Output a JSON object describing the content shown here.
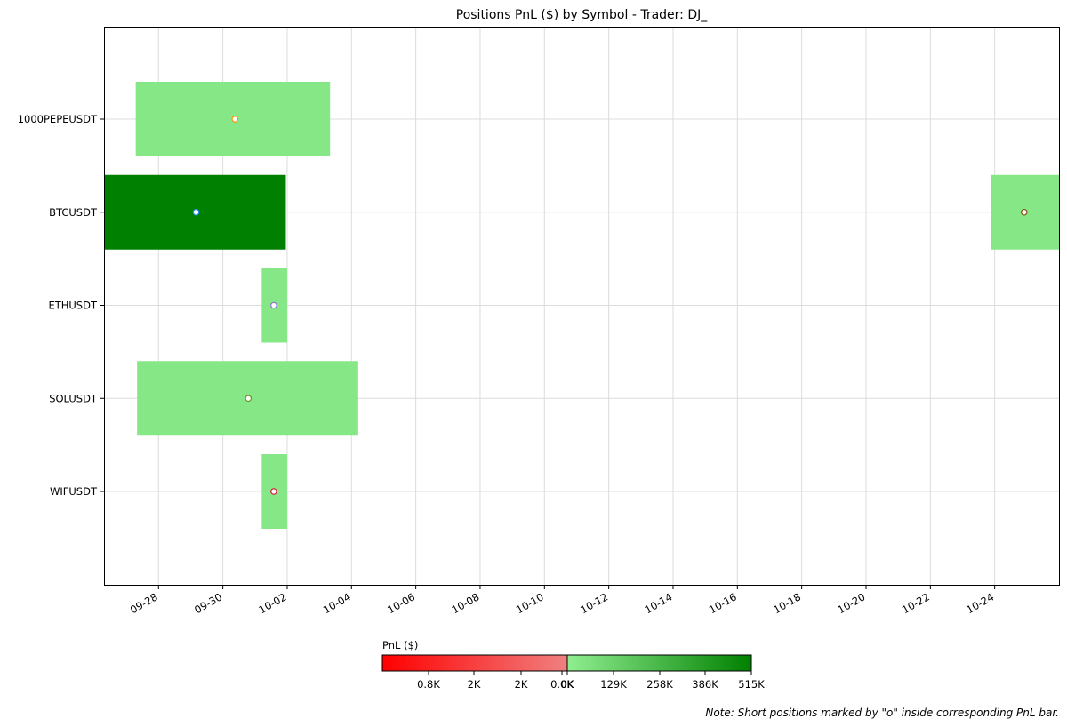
{
  "chart_data": {
    "type": "gantt",
    "title": "Positions PnL ($) by Symbol - Trader: DJ_",
    "x_axis": {
      "type": "date",
      "year": 2024,
      "range": [
        "2024-09-26T08:00",
        "2024-10-26T00:00"
      ],
      "tick_labels": [
        "09-28",
        "09-30",
        "10-02",
        "10-04",
        "10-06",
        "10-08",
        "10-10",
        "10-12",
        "10-14",
        "10-16",
        "10-18",
        "10-20",
        "10-22",
        "10-24"
      ],
      "ticks": [
        "2024-09-28",
        "2024-09-30",
        "2024-10-02",
        "2024-10-04",
        "2024-10-06",
        "2024-10-08",
        "2024-10-10",
        "2024-10-12",
        "2024-10-14",
        "2024-10-16",
        "2024-10-18",
        "2024-10-20",
        "2024-10-22",
        "2024-10-24"
      ]
    },
    "y_axis": {
      "categories": [
        "1000PEPEUSDT",
        "BTCUSDT",
        "ETHUSDT",
        "SOLUSDT",
        "WIFUSDT"
      ]
    },
    "grid": true,
    "positions": [
      {
        "symbol": "1000PEPEUSDT",
        "start": "2024-09-27T07:00",
        "end": "2024-10-03T08:00",
        "pnl_k": 120,
        "color": "#86e786",
        "marker": "2024-09-30T09:00",
        "marker_color": "#ff8c00"
      },
      {
        "symbol": "BTCUSDT",
        "start": "2024-09-26T08:00",
        "end": "2024-10-01T23:00",
        "pnl_k": 515,
        "color": "#008000",
        "marker": "2024-09-29T04:00",
        "marker_color": "#1e90ff"
      },
      {
        "symbol": "BTCUSDT",
        "start": "2024-10-23T21:00",
        "end": "2024-10-26T00:00",
        "pnl_k": 120,
        "color": "#86e786",
        "marker": "2024-10-24T22:00",
        "marker_color": "#8b4513"
      },
      {
        "symbol": "ETHUSDT",
        "start": "2024-10-01T05:00",
        "end": "2024-10-02T00:00",
        "pnl_k": 120,
        "color": "#86e786",
        "marker": "2024-10-01T14:00",
        "marker_color": "#9370db"
      },
      {
        "symbol": "SOLUSDT",
        "start": "2024-09-27T08:00",
        "end": "2024-10-04T05:00",
        "pnl_k": 120,
        "color": "#86e786",
        "marker": "2024-09-30T19:00",
        "marker_color": "#6b8e23"
      },
      {
        "symbol": "WIFUSDT",
        "start": "2024-10-01T05:00",
        "end": "2024-10-02T00:00",
        "pnl_k": 120,
        "color": "#86e786",
        "marker": "2024-10-01T14:00",
        "marker_color": "#dc143c"
      }
    ],
    "colorbar": {
      "label": "PnL ($)",
      "negative_ticks": [
        "0.8K",
        "2K",
        "2K",
        "0.0K"
      ],
      "positive_ticks": [
        "0K",
        "129K",
        "258K",
        "386K",
        "515K"
      ],
      "negative_gradient": [
        "#ff0000",
        "#f08080"
      ],
      "positive_gradient": [
        "#90ee90",
        "#008000"
      ]
    },
    "note": "Note: Short positions marked by \"o\" inside corresponding PnL bar."
  }
}
